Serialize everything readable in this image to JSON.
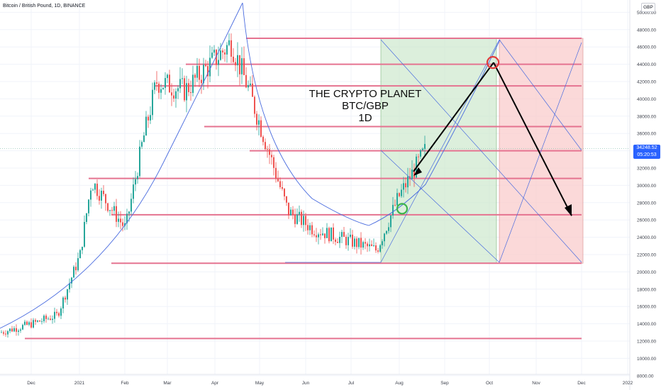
{
  "symbol_title": "Bitcoin / British Pound, 1D, BINANCE",
  "currency": "GBP",
  "last_price": {
    "value": "34248.52",
    "countdown": "05:20:53",
    "price": 34248.52
  },
  "overlay_text": [
    "THE CRYPTO PLANET",
    "BTC/GBP",
    "1D"
  ],
  "colors": {
    "up": "#26a69a",
    "down": "#ef5350",
    "level": "#e57390",
    "arc": "#4a6cdf",
    "green_zone": "#c9e6c9",
    "red_zone": "#f9c9c9",
    "price_tag": "#2962ff"
  },
  "chart_data": {
    "type": "candlestick",
    "title": "Bitcoin / British Pound, 1D, BINANCE",
    "ylim": [
      8000,
      51000
    ],
    "yticks": [
      8000,
      10000,
      12000,
      14000,
      16000,
      18000,
      20000,
      22000,
      24000,
      26000,
      28000,
      30000,
      32000,
      34000,
      36000,
      38000,
      40000,
      42000,
      44000,
      46000,
      48000,
      50000
    ],
    "ytick_labels": [
      "8000.00",
      "10000.00",
      "12000.00",
      "14000.00",
      "16000.00",
      "18000.00",
      "20000.00",
      "22000.00",
      "24000.00",
      "26000.00",
      "28000.00",
      "30000.00",
      "32000.00",
      "34000.00",
      "36000.00",
      "38000.00",
      "40000.00",
      "42000.00",
      "44000.00",
      "46000.00",
      "48000.00",
      "50000.00"
    ],
    "xtick_labels": [
      "Dec",
      "2021",
      "Feb",
      "Mar",
      "Apr",
      "May",
      "Jun",
      "Jul",
      "Aug",
      "Sep",
      "Oct",
      "Nov",
      "Dec",
      "2022"
    ],
    "price_path": [
      {
        "month": "Nov 2020",
        "close": 13000
      },
      {
        "month": "Dec 2020 start",
        "close": 14000
      },
      {
        "month": "Dec 2020 mid",
        "close": 15000
      },
      {
        "month": "Jan 2021 start",
        "close": 22000
      },
      {
        "month": "Jan 2021 peak",
        "close": 30500
      },
      {
        "month": "Feb 2021 start",
        "close": 25000
      },
      {
        "month": "Feb 2021 mid",
        "close": 35000
      },
      {
        "month": "Feb 2021 end",
        "close": 42000
      },
      {
        "month": "Mar 2021",
        "close": 41000
      },
      {
        "month": "Apr 2021 peak",
        "close": 46500
      },
      {
        "month": "May 2021 start",
        "close": 41000
      },
      {
        "month": "May 2021 crash",
        "close": 27000
      },
      {
        "month": "Jun 2021",
        "close": 25000
      },
      {
        "month": "Jul 2021",
        "close": 22500
      },
      {
        "month": "Aug 2021 start",
        "close": 28500
      },
      {
        "month": "Aug 2021 end",
        "close": 34248.52
      }
    ],
    "horizontal_levels": [
      47000,
      44000,
      41500,
      36800,
      34000,
      30800,
      26600,
      21000,
      12300
    ],
    "projection": {
      "target_high": 44200,
      "target_low": 26500,
      "high_month": "Oct 2021",
      "low_month": "Nov 2021"
    }
  }
}
